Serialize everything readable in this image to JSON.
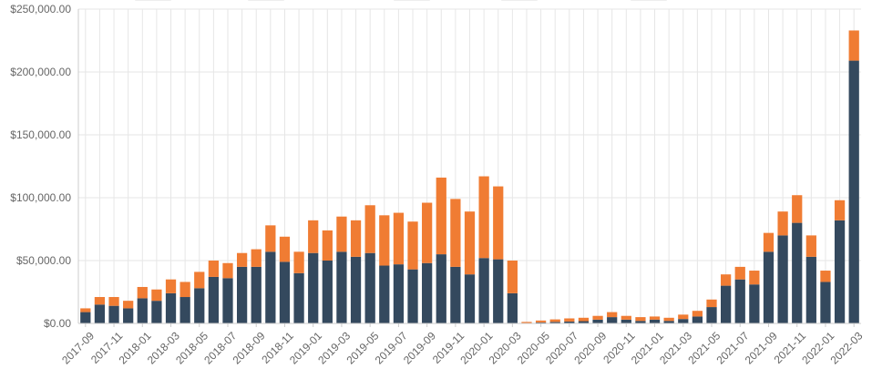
{
  "colors": {
    "series_primary": "#34495e",
    "series_secondary": "#f07c33",
    "grid": "#e6e6e6",
    "axis": "#cccccc",
    "tick_text": "#666666"
  },
  "chart_data": {
    "type": "bar",
    "stacked": true,
    "grid": true,
    "ylim": [
      0,
      250000
    ],
    "y_ticks": [
      0,
      50000,
      100000,
      150000,
      200000,
      250000
    ],
    "y_tick_labels": [
      "$0.00",
      "$50,000.00",
      "$100,000.00",
      "$150,000.00",
      "$200,000.00",
      "$250,000.00"
    ],
    "categories": [
      "2017-09",
      "2017-10",
      "2017-11",
      "2017-12",
      "2018-01",
      "2018-02",
      "2018-03",
      "2018-04",
      "2018-05",
      "2018-06",
      "2018-07",
      "2018-08",
      "2018-09",
      "2018-10",
      "2018-11",
      "2018-12",
      "2019-01",
      "2019-02",
      "2019-03",
      "2019-04",
      "2019-05",
      "2019-06",
      "2019-07",
      "2019-08",
      "2019-09",
      "2019-10",
      "2019-11",
      "2019-12",
      "2020-01",
      "2020-02",
      "2020-03",
      "2020-04",
      "2020-05",
      "2020-06",
      "2020-07",
      "2020-08",
      "2020-09",
      "2020-10",
      "2020-11",
      "2020-12",
      "2021-01",
      "2021-02",
      "2021-03",
      "2021-04",
      "2021-05",
      "2021-06",
      "2021-07",
      "2021-08",
      "2021-09",
      "2021-10",
      "2021-11",
      "2021-12",
      "2022-01",
      "2022-02",
      "2022-03"
    ],
    "x_tick_labels": [
      "2017-09",
      "2017-11",
      "2018-01",
      "2018-03",
      "2018-05",
      "2018-07",
      "2018-09",
      "2018-11",
      "2019-01",
      "2019-03",
      "2019-05",
      "2019-07",
      "2019-09",
      "2019-11",
      "2020-01",
      "2020-03",
      "2020-05",
      "2020-07",
      "2020-09",
      "2020-11",
      "2021-01",
      "2021-03",
      "2021-05",
      "2021-07",
      "2021-09",
      "2021-11",
      "2022-01",
      "2022-03"
    ],
    "series": [
      {
        "values": [
          9000,
          15000,
          14000,
          12000,
          20000,
          18000,
          24000,
          21000,
          28000,
          37000,
          36000,
          45000,
          45000,
          57000,
          49000,
          40000,
          56000,
          50000,
          57000,
          53000,
          56000,
          46000,
          47000,
          43000,
          48000,
          55000,
          45000,
          39000,
          52000,
          51000,
          24000,
          300,
          800,
          1200,
          1500,
          1800,
          3000,
          5000,
          3000,
          2000,
          3000,
          2000,
          3500,
          5500,
          13000,
          30000,
          35000,
          31000,
          57000,
          70000,
          80000,
          53000,
          33000,
          82000,
          209000
        ]
      },
      {
        "values": [
          3000,
          6000,
          7000,
          6000,
          9000,
          9000,
          11000,
          12000,
          13000,
          13000,
          12000,
          11000,
          14000,
          21000,
          20000,
          17000,
          26000,
          24000,
          28000,
          29000,
          38000,
          40000,
          41000,
          38000,
          48000,
          61000,
          54000,
          50000,
          65000,
          58000,
          26000,
          900,
          1500,
          2000,
          2500,
          2700,
          3000,
          4000,
          3000,
          3000,
          2500,
          2500,
          3500,
          4500,
          6000,
          9000,
          10000,
          11000,
          15000,
          19000,
          22000,
          17000,
          9000,
          16000,
          24000
        ]
      }
    ]
  }
}
